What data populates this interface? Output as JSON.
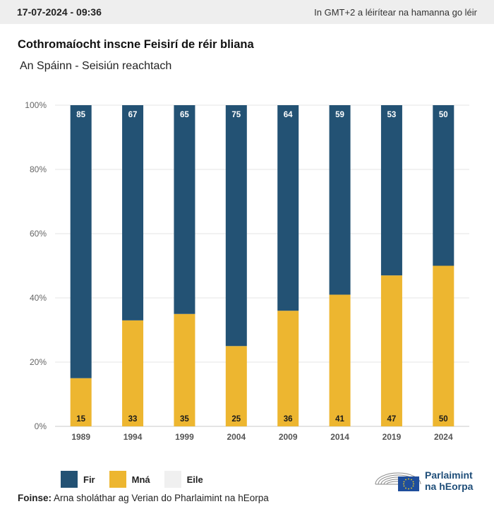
{
  "header": {
    "timestamp": "17-07-2024 - 09:36",
    "timezone_note": "In GMT+2 a léirítear na hamanna go léir"
  },
  "title": "Cothromaíocht inscne Feisirí de réir bliana",
  "subtitle": "An Spáinn - Seisiún reachtach",
  "chart_data": {
    "type": "bar",
    "stacked": true,
    "categories": [
      "1989",
      "1994",
      "1999",
      "2004",
      "2009",
      "2014",
      "2019",
      "2024"
    ],
    "series": [
      {
        "name": "Mná",
        "color": "#edb630",
        "values": [
          15,
          33,
          35,
          25,
          36,
          41,
          47,
          50
        ]
      },
      {
        "name": "Fir",
        "color": "#235274",
        "values": [
          85,
          67,
          65,
          75,
          64,
          59,
          53,
          50
        ]
      }
    ],
    "yticks": [
      "0%",
      "20%",
      "40%",
      "60%",
      "80%",
      "100%"
    ],
    "ylim": [
      0,
      100
    ],
    "grid": true
  },
  "legend": [
    {
      "label": "Fir",
      "color": "#235274"
    },
    {
      "label": "Mná",
      "color": "#edb630"
    },
    {
      "label": "Eile",
      "color": "#f0f0f0"
    }
  ],
  "source": {
    "label": "Foinse:",
    "text": "Arna sholáthar ag Verian do Pharlaimint na hEorpa"
  },
  "logo": {
    "line1": "Parlaimint",
    "line2": "na hEorpa"
  }
}
